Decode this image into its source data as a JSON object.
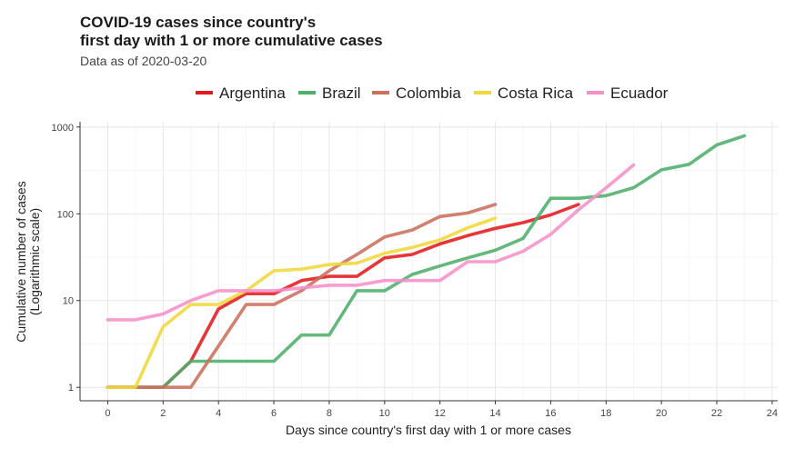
{
  "chart_data": {
    "type": "line",
    "title_lines": [
      "COVID-19 cases since country's",
      "first day with 1 or more cumulative cases"
    ],
    "subtitle": "Data as of 2020-03-20",
    "xlabel": "Days since country's first day with 1 or more cases",
    "ylabel_lines": [
      "Cumulative number of cases",
      "(Logarithmic scale)"
    ],
    "y_scale": "log10",
    "xlim": [
      -1,
      24.2
    ],
    "ylim": [
      0.7,
      1150
    ],
    "x_ticks": [
      0,
      2,
      4,
      6,
      8,
      10,
      12,
      14,
      16,
      18,
      20,
      22,
      24
    ],
    "y_ticks": [
      1,
      10,
      100,
      1000
    ],
    "y_tick_labels": [
      "1",
      "10",
      "100",
      "1000"
    ],
    "grid": true,
    "legend_position": "top",
    "series": [
      {
        "name": "Argentina",
        "color": "#e41a1c",
        "x": [
          0,
          1,
          2,
          3,
          4,
          5,
          6,
          7,
          8,
          9,
          10,
          11,
          12,
          13,
          14,
          15,
          16,
          17
        ],
        "y": [
          1,
          1,
          1,
          2,
          8,
          12,
          12,
          17,
          19,
          19,
          31,
          34,
          45,
          56,
          68,
          79,
          97,
          128
        ]
      },
      {
        "name": "Brazil",
        "color": "#4daf6a",
        "x": [
          0,
          1,
          2,
          3,
          4,
          5,
          6,
          7,
          8,
          9,
          10,
          11,
          12,
          13,
          14,
          15,
          16,
          17,
          18,
          19,
          20,
          21,
          22,
          23
        ],
        "y": [
          1,
          1,
          1,
          2,
          2,
          2,
          2,
          4,
          4,
          13,
          13,
          20,
          25,
          31,
          38,
          52,
          151,
          151,
          162,
          200,
          321,
          372,
          621,
          793
        ]
      },
      {
        "name": "Colombia",
        "color": "#cc6f5c",
        "x": [
          0,
          1,
          2,
          3,
          4,
          5,
          6,
          7,
          8,
          9,
          10,
          11,
          12,
          13,
          14
        ],
        "y": [
          1,
          1,
          1,
          1,
          3,
          9,
          9,
          13,
          22,
          34,
          54,
          65,
          93,
          102,
          128
        ]
      },
      {
        "name": "Costa Rica",
        "color": "#f0d83a",
        "x": [
          0,
          1,
          2,
          3,
          4,
          5,
          6,
          7,
          8,
          9,
          10,
          11,
          12,
          13,
          14
        ],
        "y": [
          1,
          1,
          5,
          9,
          9,
          13,
          22,
          23,
          26,
          27,
          35,
          41,
          50,
          69,
          89
        ]
      },
      {
        "name": "Ecuador",
        "color": "#f78fc8",
        "x": [
          0,
          1,
          2,
          3,
          4,
          5,
          6,
          7,
          8,
          9,
          10,
          11,
          12,
          13,
          14,
          15,
          16,
          17,
          18,
          19
        ],
        "y": [
          6,
          6,
          7,
          10,
          13,
          13,
          13,
          14,
          15,
          15,
          17,
          17,
          17,
          28,
          28,
          37,
          58,
          111,
          199,
          367
        ]
      }
    ]
  }
}
